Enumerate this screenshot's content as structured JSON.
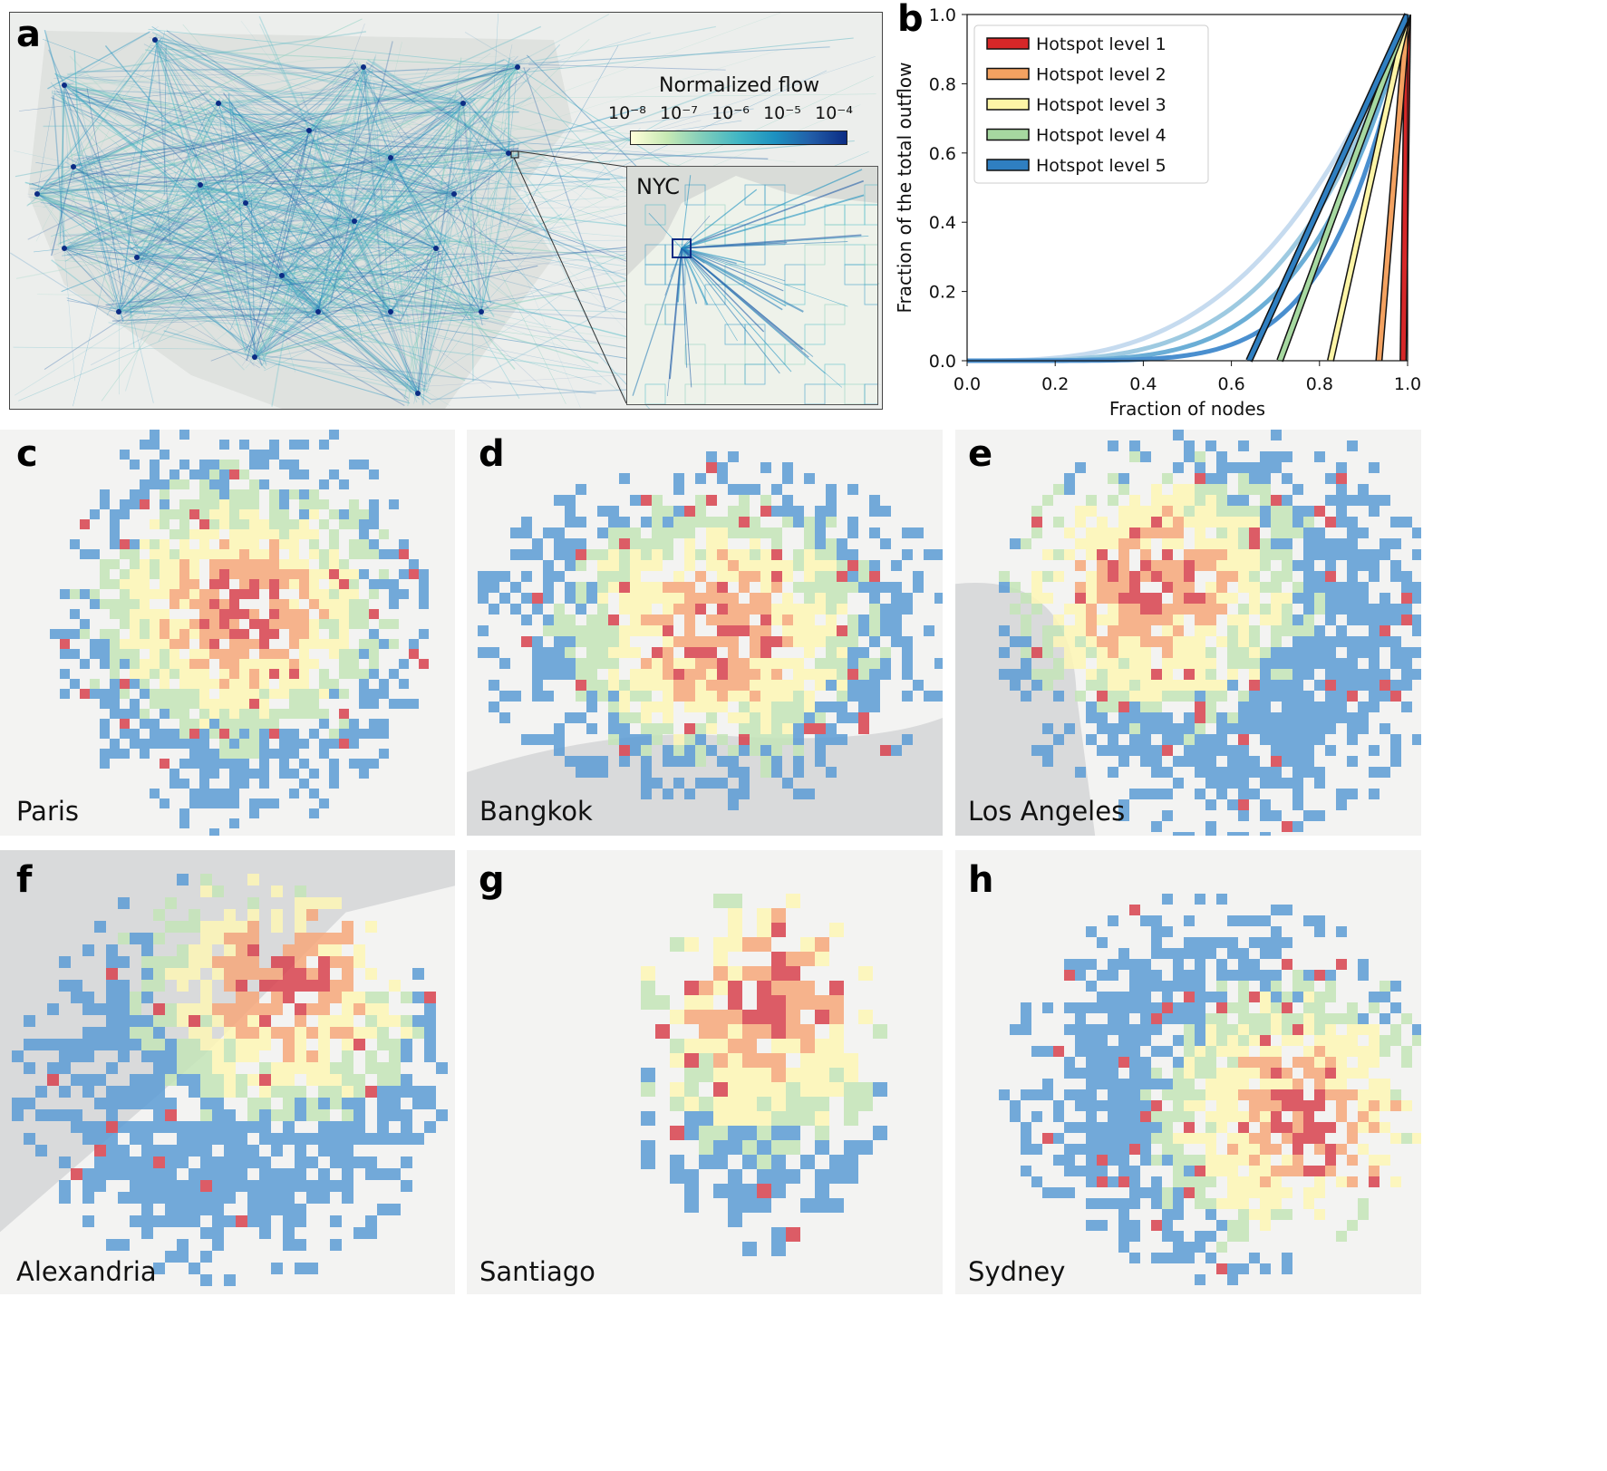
{
  "panel_letters": {
    "a": "a",
    "b": "b",
    "c": "c",
    "d": "d",
    "e": "e",
    "f": "f",
    "g": "g",
    "h": "h"
  },
  "panel_a": {
    "colorbar_title": "Normalized flow",
    "colorbar_ticks": [
      "10⁻⁸",
      "10⁻⁷",
      "10⁻⁶",
      "10⁻⁵",
      "10⁻⁴"
    ],
    "colorbar_colors": [
      "#ffffd9",
      "#c7e9b4",
      "#7fcdbb",
      "#41b6c4",
      "#1d91c0",
      "#225ea8",
      "#0c2c84"
    ],
    "inset_label": "NYC"
  },
  "chart_data": {
    "type": "line",
    "xlabel": "Fraction of nodes",
    "ylabel": "Fraction of the total outflow",
    "xlim": [
      0.0,
      1.0
    ],
    "ylim": [
      0.0,
      1.0
    ],
    "xticks": [
      "0.0",
      "0.2",
      "0.4",
      "0.6",
      "0.8",
      "1.0"
    ],
    "yticks": [
      "0.0",
      "0.2",
      "0.4",
      "0.6",
      "0.8",
      "1.0"
    ],
    "legend_position": "top-left",
    "grid": false,
    "series": [
      {
        "name": "Hotspot level 1",
        "color": "#d62728",
        "x": [
          0.99,
          1.0
        ],
        "y": [
          0.0,
          1.0
        ]
      },
      {
        "name": "Hotspot level 2",
        "color": "#f4a261",
        "x": [
          0.935,
          1.0
        ],
        "y": [
          0.0,
          1.0
        ]
      },
      {
        "name": "Hotspot level 3",
        "color": "#fdf5a6",
        "x": [
          0.825,
          1.0
        ],
        "y": [
          0.0,
          1.0
        ]
      },
      {
        "name": "Hotspot level 4",
        "color": "#a6d8a0",
        "x": [
          0.71,
          1.0
        ],
        "y": [
          0.0,
          1.0
        ]
      },
      {
        "name": "Hotspot level 5",
        "color": "#2f7fc1",
        "x": [
          0.64,
          1.0
        ],
        "y": [
          0.0,
          1.0
        ]
      }
    ],
    "lorenz_curves": [
      {
        "exponent": 3.0,
        "color": "#c6dbef"
      },
      {
        "exponent": 3.7,
        "color": "#9ecae1"
      },
      {
        "exponent": 4.6,
        "color": "#6baed6"
      },
      {
        "exponent": 6.0,
        "color": "#4a8fcf"
      }
    ]
  },
  "cities": [
    {
      "id": "c",
      "label": "Paris"
    },
    {
      "id": "d",
      "label": "Bangkok"
    },
    {
      "id": "e",
      "label": "Los Angeles"
    },
    {
      "id": "f",
      "label": "Alexandria"
    },
    {
      "id": "g",
      "label": "Santiago"
    },
    {
      "id": "h",
      "label": "Sydney"
    }
  ],
  "hotspot_palette": [
    "#d7414e",
    "#f6a77a",
    "#fdf6b5",
    "#c3e4b7",
    "#5b9bd5"
  ]
}
